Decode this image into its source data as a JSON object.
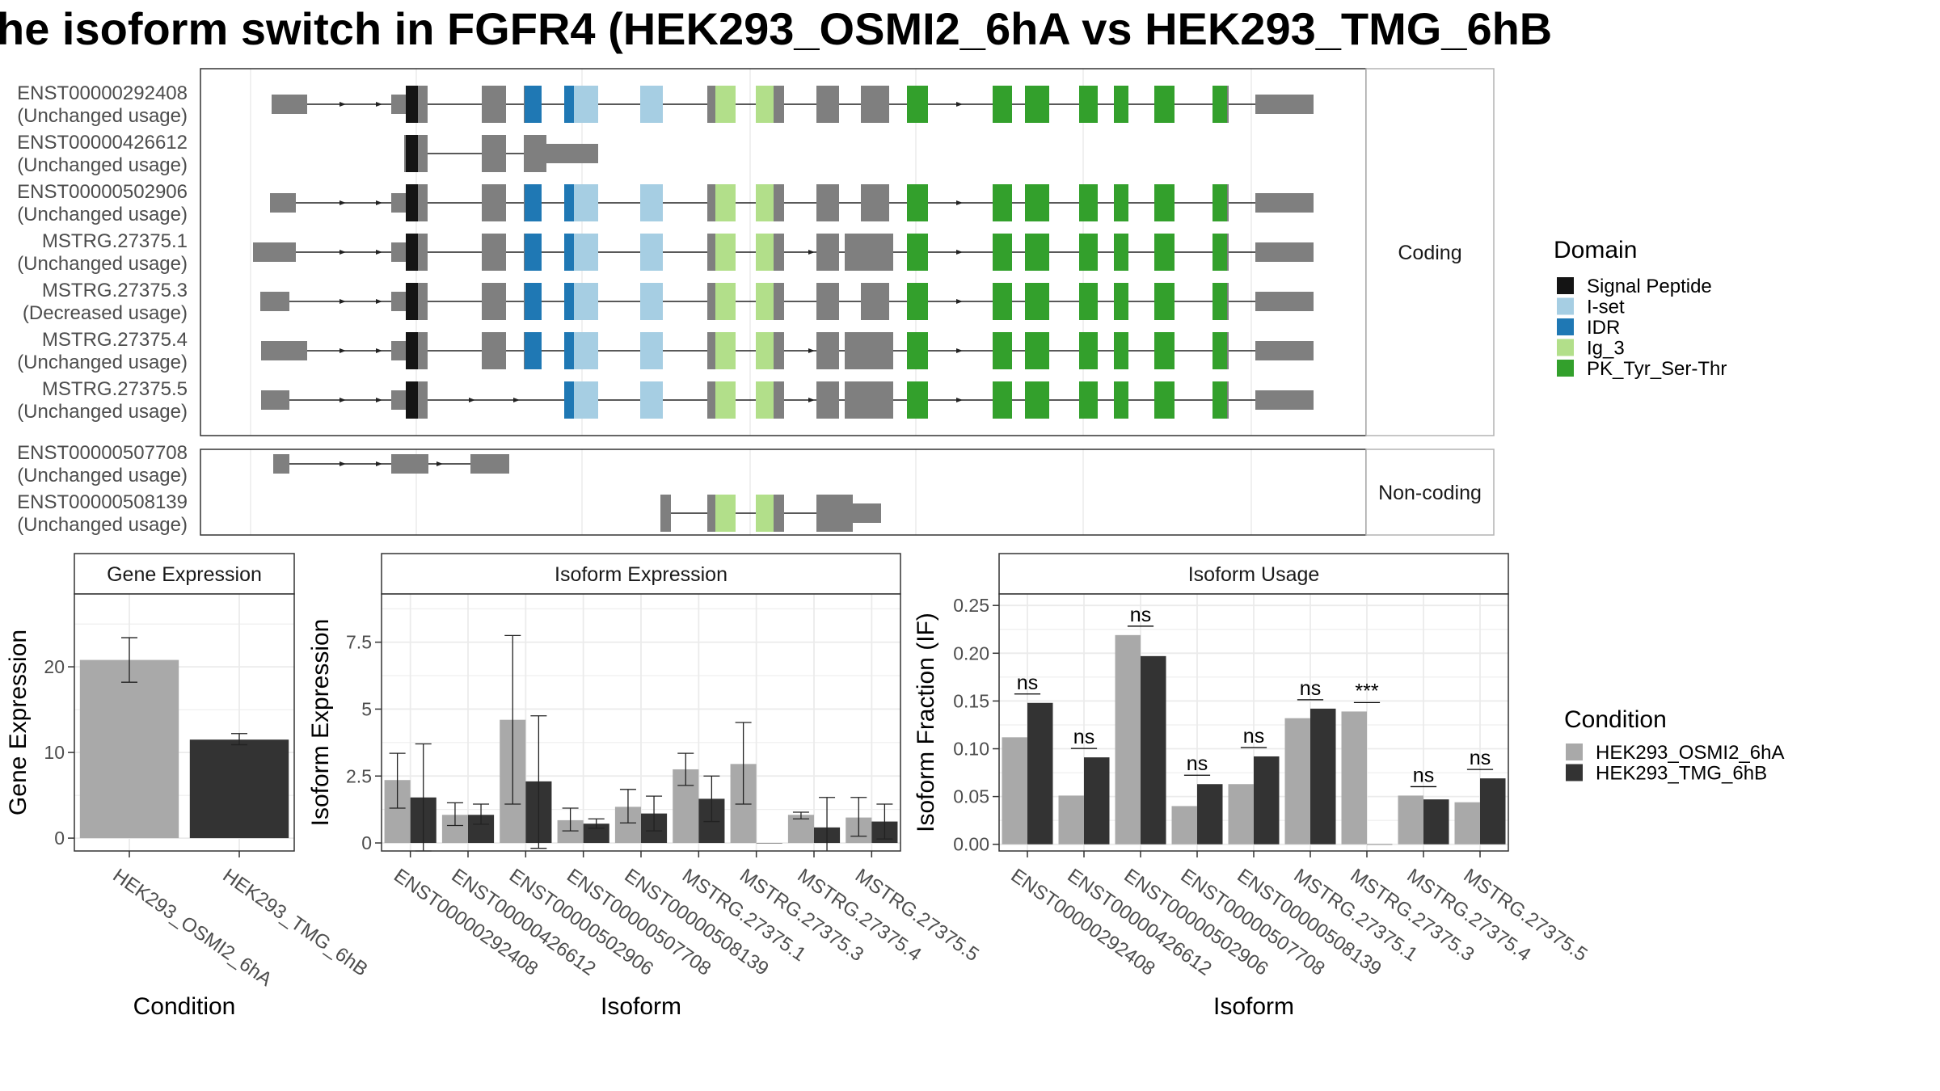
{
  "title": "he isoform switch in FGFR4 (HEK293_OSMI2_6hA vs HEK293_TMG_6hB",
  "colors": {
    "exon": "#7f7f7f",
    "signal_peptide": "#141414",
    "i_set": "#a6cee3",
    "idr": "#1f78b4",
    "ig_3": "#b2df8a",
    "pk": "#33a02c",
    "cond_a": "#a9a9a9",
    "cond_b": "#333333"
  },
  "transcripts": {
    "strip_labels": [
      "Coding",
      "Non-coding"
    ],
    "coding": [
      {
        "id": "ENST00000292408",
        "status": "(Unchanged usage)"
      },
      {
        "id": "ENST00000426612",
        "status": "(Unchanged usage)"
      },
      {
        "id": "ENST00000502906",
        "status": "(Unchanged usage)"
      },
      {
        "id": "MSTRG.27375.1",
        "status": "(Unchanged usage)"
      },
      {
        "id": "MSTRG.27375.3",
        "status": "(Decreased usage)"
      },
      {
        "id": "MSTRG.27375.4",
        "status": "(Unchanged usage)"
      },
      {
        "id": "MSTRG.27375.5",
        "status": "(Unchanged usage)"
      }
    ],
    "noncoding": [
      {
        "id": "ENST00000507708",
        "status": "(Unchanged usage)"
      },
      {
        "id": "ENST00000508139",
        "status": "(Unchanged usage)"
      }
    ]
  },
  "domain_legend": {
    "title": "Domain",
    "items": [
      {
        "label": "Signal Peptide",
        "color": "#141414"
      },
      {
        "label": "I-set",
        "color": "#a6cee3"
      },
      {
        "label": "IDR",
        "color": "#1f78b4"
      },
      {
        "label": "Ig_3",
        "color": "#b2df8a"
      },
      {
        "label": "PK_Tyr_Ser-Thr",
        "color": "#33a02c"
      }
    ]
  },
  "condition_legend": {
    "title": "Condition",
    "items": [
      {
        "label": "HEK293_OSMI2_6hA",
        "color": "#a9a9a9"
      },
      {
        "label": "HEK293_TMG_6hB",
        "color": "#333333"
      }
    ]
  },
  "chart_data": [
    {
      "type": "bar",
      "title": "Gene Expression",
      "xlabel": "Condition",
      "ylabel": "Gene Expression",
      "categories": [
        "HEK293_OSMI2_6hA",
        "HEK293_TMG_6hB"
      ],
      "values": [
        20.8,
        11.5
      ],
      "err_low": [
        18.2,
        10.9
      ],
      "err_high": [
        23.4,
        12.2
      ],
      "ylim": [
        -1.5,
        28.5
      ],
      "yticks": [
        0,
        10,
        20
      ],
      "grid": true
    },
    {
      "type": "bar",
      "title": "Isoform Expression",
      "xlabel": "Isoform",
      "ylabel": "Isoform Expression",
      "categories": [
        "ENST00000292408",
        "ENST00000426612",
        "ENST00000502906",
        "ENST00000507708",
        "ENST00000508139",
        "MSTRG.27375.1",
        "MSTRG.27375.3",
        "MSTRG.27375.4",
        "MSTRG.27375.5"
      ],
      "series": [
        {
          "name": "HEK293_OSMI2_6hA",
          "values": [
            2.35,
            1.05,
            4.6,
            0.85,
            1.35,
            2.75,
            2.95,
            1.05,
            0.95
          ],
          "err_low": [
            1.3,
            0.65,
            1.45,
            0.45,
            0.75,
            2.15,
            1.45,
            0.9,
            0.25
          ],
          "err_high": [
            3.35,
            1.5,
            7.75,
            1.3,
            2.0,
            3.35,
            4.5,
            1.15,
            1.7
          ]
        },
        {
          "name": "HEK293_TMG_6hB",
          "values": [
            1.7,
            1.05,
            2.3,
            0.72,
            1.1,
            1.65,
            0.0,
            0.58,
            0.8
          ],
          "err_low": [
            -0.3,
            0.7,
            -0.2,
            0.55,
            0.45,
            0.8,
            0.0,
            -0.5,
            0.15
          ],
          "err_high": [
            3.7,
            1.45,
            4.75,
            0.9,
            1.75,
            2.5,
            0.0,
            1.7,
            1.45
          ]
        }
      ],
      "ylim": [
        -0.3,
        9.3
      ],
      "yticks": [
        0.0,
        2.5,
        5.0,
        7.5
      ],
      "grid": true
    },
    {
      "type": "bar",
      "title": "Isoform Usage",
      "xlabel": "Isoform",
      "ylabel": "Isoform Fraction (IF)",
      "categories": [
        "ENST00000292408",
        "ENST00000426612",
        "ENST00000502906",
        "ENST00000507708",
        "ENST00000508139",
        "MSTRG.27375.1",
        "MSTRG.27375.3",
        "MSTRG.27375.4",
        "MSTRG.27375.5"
      ],
      "series": [
        {
          "name": "HEK293_OSMI2_6hA",
          "values": [
            0.112,
            0.051,
            0.219,
            0.04,
            0.063,
            0.132,
            0.139,
            0.051,
            0.044
          ]
        },
        {
          "name": "HEK293_TMG_6hB",
          "values": [
            0.148,
            0.091,
            0.197,
            0.063,
            0.092,
            0.142,
            0.0,
            0.047,
            0.069
          ]
        }
      ],
      "significance": [
        "ns",
        "ns",
        "ns",
        "ns",
        "ns",
        "ns",
        "***",
        "ns",
        "ns"
      ],
      "ylim": [
        -0.007,
        0.262
      ],
      "yticks": [
        0.0,
        0.05,
        0.1,
        0.15,
        0.2,
        0.25
      ],
      "yticklabels": [
        "0.00",
        "0.05",
        "0.10",
        "0.15",
        "0.20",
        "0.25"
      ],
      "grid": true
    }
  ]
}
